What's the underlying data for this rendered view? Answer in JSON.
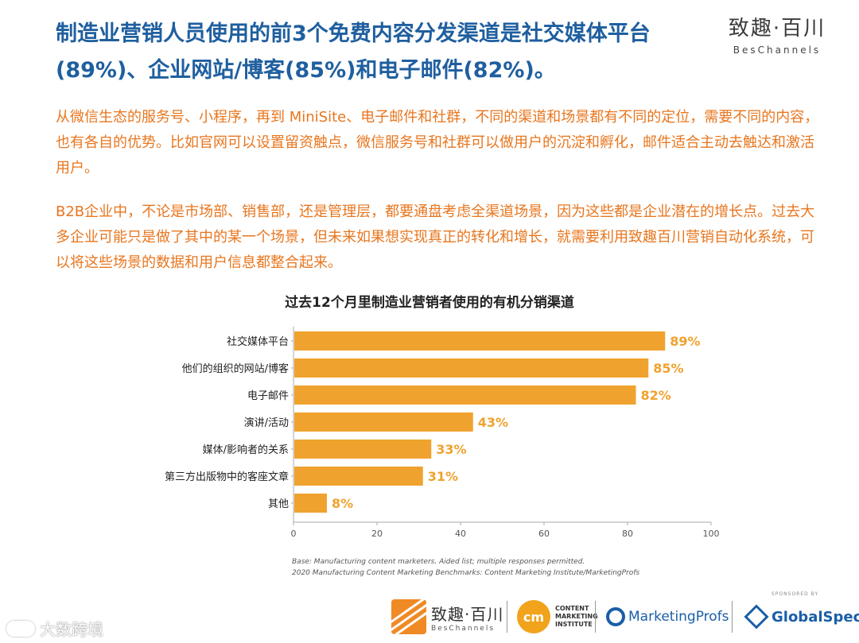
{
  "header": {
    "title": "制造业营销人员使用的前3个免费内容分发渠道是社交媒体平台(89%)、企业网站/博客(85%)和电子邮件(82%)。",
    "brand_name": "致趣·百川",
    "brand_sub": "BesChannels"
  },
  "body": {
    "paragraph1": "从微信生态的服务号、小程序，再到 MiniSite、电子邮件和社群，不同的渠道和场景都有不同的定位，需要不同的内容，也有各自的优势。比如官网可以设置留资触点，微信服务号和社群可以做用户的沉淀和孵化，邮件适合主动去触达和激活用户。",
    "paragraph2": "B2B企业中，不论是市场部、销售部，还是管理层，都要通盘考虑全渠道场景，因为这些都是企业潜在的增长点。过去大多企业可能只是做了其中的某一个场景，但未来如果想实现真正的转化和增长，就需要利用致趣百川营销自动化系统，可以将这些场景的数据和用户信息都整合起来。"
  },
  "chart_data": {
    "type": "bar",
    "orientation": "horizontal",
    "title": "过去12个月里制造业营销者使用的有机分销渠道",
    "categories": [
      "社交媒体平台",
      "他们的组织的网站/博客",
      "电子邮件",
      "演讲/活动",
      "媒体/影响者的关系",
      "第三方出版物中的客座文章",
      "其他"
    ],
    "values": [
      89,
      85,
      82,
      43,
      33,
      31,
      8
    ],
    "value_labels": [
      "89%",
      "85%",
      "82%",
      "43%",
      "33%",
      "31%",
      "8%"
    ],
    "xlim": [
      0,
      100
    ],
    "xticks": [
      0,
      20,
      40,
      60,
      80,
      100
    ],
    "xlabel": "",
    "ylabel": "",
    "grid": false,
    "bar_color": "#f0a22e",
    "label_color": "#f0a22e",
    "notes": [
      "Base: Manufacturing content marketers. Aided list; multiple responses permitted.",
      "2020 Manufacturing Content Marketing Benchmarks: Content Marketing Institute/MarketingProfs"
    ]
  },
  "footer": {
    "beschannels_name": "致趣·百川",
    "beschannels_sub": "BesChannels",
    "cmi_mark": "cm",
    "cmi_line1": "CONTENT",
    "cmi_line2": "MARKETING",
    "cmi_line3": "INSTITUTE",
    "marketingprofs": "MarketingProfs",
    "sponsored": "SPONSORED BY",
    "globalspec": "GlobalSpec",
    "watermark": "大数跨境"
  },
  "colors": {
    "title": "#1f5f9f",
    "paragraph": "#e8761e",
    "bar": "#f0a22e"
  }
}
